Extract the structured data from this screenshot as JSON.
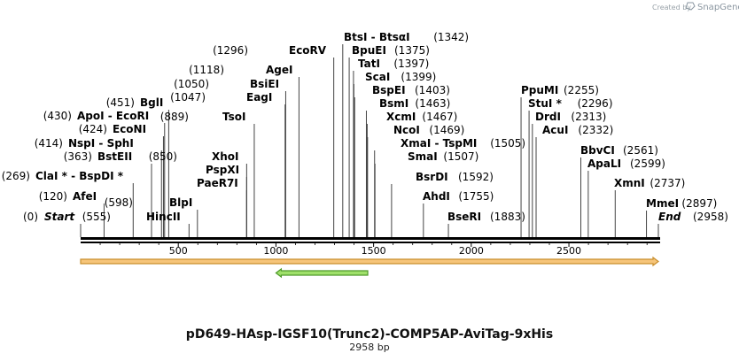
{
  "credit": {
    "prefix": "Created by",
    "brand": "SnapGene"
  },
  "plasmid": {
    "name": "pD649-HAsp-IGSF10(Trunc2)-COMP5AP-AviTag-9xHis",
    "length_label": "2958 bp",
    "length": 2958
  },
  "ruler": {
    "ticks": [
      500,
      1000,
      1500,
      2000,
      2500
    ]
  },
  "sites": [
    {
      "name": "Start",
      "pos": 0,
      "pos_label": "(0)",
      "side": "left",
      "italic": true
    },
    {
      "name": "AfeI",
      "pos": 120,
      "pos_label": "(120)",
      "side": "left"
    },
    {
      "name": "ClaI * - BspDI *",
      "pos": 269,
      "pos_label": "(269)",
      "side": "left"
    },
    {
      "name": "BstEII",
      "pos": 363,
      "pos_label": "(363)",
      "side": "left"
    },
    {
      "name": "NspI - SphI",
      "pos": 414,
      "pos_label": "(414)",
      "side": "left"
    },
    {
      "name": "EcoNI",
      "pos": 424,
      "pos_label": "(424)",
      "side": "left"
    },
    {
      "name": "ApoI - EcoRI",
      "pos": 430,
      "pos_label": "(430)",
      "side": "left"
    },
    {
      "name": "BglI",
      "pos": 451,
      "pos_label": "(451)",
      "side": "left"
    },
    {
      "name": "HincII",
      "pos": 555,
      "pos_label": "(555)",
      "side": "right"
    },
    {
      "name": "BlpI",
      "pos": 598,
      "pos_label": "(598)",
      "side": "right"
    },
    {
      "name": "PaeR7I",
      "pos": 850,
      "pos_label": "",
      "side": "left"
    },
    {
      "name": "PspXI",
      "pos": 850,
      "pos_label": "",
      "side": "left"
    },
    {
      "name": "XhoI",
      "pos": 850,
      "pos_label": "(850)",
      "side": "right"
    },
    {
      "name": "TsoI",
      "pos": 889,
      "pos_label": "(889)",
      "side": "right"
    },
    {
      "name": "EagI",
      "pos": 1047,
      "pos_label": "(1047)",
      "side": "right"
    },
    {
      "name": "BsiEI",
      "pos": 1050,
      "pos_label": "(1050)",
      "side": "right"
    },
    {
      "name": "AgeI",
      "pos": 1118,
      "pos_label": "(1118)",
      "side": "right"
    },
    {
      "name": "EcoRV",
      "pos": 1296,
      "pos_label": "(1296)",
      "side": "right"
    },
    {
      "name": "BtsI - BtsαI",
      "pos": 1342,
      "pos_label": "(1342)",
      "side": "left"
    },
    {
      "name": "BpuEI",
      "pos": 1375,
      "pos_label": "(1375)",
      "side": "left"
    },
    {
      "name": "TatI",
      "pos": 1397,
      "pos_label": "(1397)",
      "side": "left"
    },
    {
      "name": "ScaI",
      "pos": 1399,
      "pos_label": "(1399)",
      "side": "left"
    },
    {
      "name": "BspEI",
      "pos": 1403,
      "pos_label": "(1403)",
      "side": "left"
    },
    {
      "name": "BsmI",
      "pos": 1463,
      "pos_label": "(1463)",
      "side": "left"
    },
    {
      "name": "XcmI",
      "pos": 1467,
      "pos_label": "(1467)",
      "side": "left"
    },
    {
      "name": "NcoI",
      "pos": 1469,
      "pos_label": "(1469)",
      "side": "left"
    },
    {
      "name": "XmaI - TspMI",
      "pos": 1505,
      "pos_label": "(1505)",
      "side": "left"
    },
    {
      "name": "SmaI",
      "pos": 1507,
      "pos_label": "(1507)",
      "side": "left"
    },
    {
      "name": "BsrDI",
      "pos": 1592,
      "pos_label": "(1592)",
      "side": "left"
    },
    {
      "name": "AhdI",
      "pos": 1755,
      "pos_label": "(1755)",
      "side": "left"
    },
    {
      "name": "BseRI",
      "pos": 1883,
      "pos_label": "(1883)",
      "side": "left"
    },
    {
      "name": "PpuMI",
      "pos": 2255,
      "pos_label": "(2255)",
      "side": "left"
    },
    {
      "name": "StuI *",
      "pos": 2296,
      "pos_label": "(2296)",
      "side": "left"
    },
    {
      "name": "DrdI",
      "pos": 2313,
      "pos_label": "(2313)",
      "side": "left"
    },
    {
      "name": "AcuI",
      "pos": 2332,
      "pos_label": "(2332)",
      "side": "left"
    },
    {
      "name": "BbvCI",
      "pos": 2561,
      "pos_label": "(2561)",
      "side": "left"
    },
    {
      "name": "ApaLI",
      "pos": 2599,
      "pos_label": "(2599)",
      "side": "left"
    },
    {
      "name": "XmnI",
      "pos": 2737,
      "pos_label": "(2737)",
      "side": "left"
    },
    {
      "name": "MmeI",
      "pos": 2897,
      "pos_label": "(2897)",
      "side": "left"
    },
    {
      "name": "End",
      "pos": 2958,
      "pos_label": "(2958)",
      "side": "left",
      "italic": true
    }
  ],
  "features": [
    {
      "name": "forward-feature",
      "start": 0,
      "end": 2958,
      "direction": "forward",
      "color": "#f6c57a",
      "edge": "#c98f2e"
    },
    {
      "name": "reverse-feature",
      "start": 1000,
      "end": 1470,
      "direction": "reverse",
      "color": "#9fe06a",
      "edge": "#4f9a2a"
    }
  ],
  "colors": {
    "backbone": "#000000",
    "site_line": "#444444"
  }
}
